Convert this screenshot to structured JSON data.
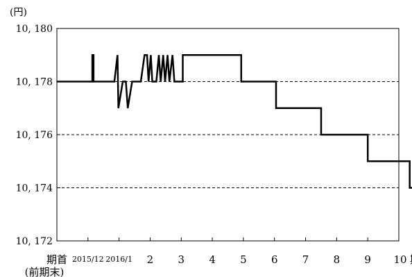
{
  "chart_data": {
    "type": "line",
    "unit_label": "(円)",
    "ylim": [
      10172,
      10180
    ],
    "y_ticks": [
      {
        "value": 10172,
        "label": "10, 172"
      },
      {
        "value": 10174,
        "label": "10, 174"
      },
      {
        "value": 10176,
        "label": "10, 176"
      },
      {
        "value": 10178,
        "label": "10, 178"
      },
      {
        "value": 10180,
        "label": "10, 180"
      }
    ],
    "dashed_gridlines": [
      10174,
      10176,
      10178
    ],
    "x_ticks": [
      {
        "label": "期首",
        "sublabel": "(前期末)",
        "small": false
      },
      {
        "label": "2015/12",
        "small": true
      },
      {
        "label": "2016/1",
        "small": true
      },
      {
        "label": "2",
        "small": false
      },
      {
        "label": "3",
        "small": false
      },
      {
        "label": "4",
        "small": false
      },
      {
        "label": "5",
        "small": false
      },
      {
        "label": "6",
        "small": false
      },
      {
        "label": "7",
        "small": false
      },
      {
        "label": "8",
        "small": false
      },
      {
        "label": "9",
        "small": false
      },
      {
        "label": "10",
        "suffix": "期末",
        "small": false
      }
    ],
    "series": [
      {
        "points": [
          [
            0,
            10178
          ],
          [
            1.14,
            10178
          ],
          [
            1.14,
            10179
          ],
          [
            1.18,
            10179
          ],
          [
            1.18,
            10178
          ],
          [
            1.85,
            10178
          ],
          [
            1.95,
            10179
          ],
          [
            1.98,
            10177
          ],
          [
            2.12,
            10178
          ],
          [
            2.22,
            10178
          ],
          [
            2.28,
            10177
          ],
          [
            2.42,
            10178
          ],
          [
            2.7,
            10178
          ],
          [
            2.82,
            10179
          ],
          [
            2.9,
            10179
          ],
          [
            2.95,
            10178
          ],
          [
            3.02,
            10179
          ],
          [
            3.07,
            10178
          ],
          [
            3.2,
            10178
          ],
          [
            3.28,
            10179
          ],
          [
            3.34,
            10178
          ],
          [
            3.42,
            10179
          ],
          [
            3.48,
            10178
          ],
          [
            3.56,
            10179
          ],
          [
            3.62,
            10178
          ],
          [
            3.72,
            10179
          ],
          [
            3.78,
            10178
          ],
          [
            4.05,
            10178
          ],
          [
            4.05,
            10179
          ],
          [
            5.93,
            10179
          ],
          [
            5.93,
            10178
          ],
          [
            7.05,
            10178
          ],
          [
            7.05,
            10177
          ],
          [
            8.5,
            10177
          ],
          [
            8.5,
            10176
          ],
          [
            10.0,
            10176
          ],
          [
            10.0,
            10175
          ],
          [
            11.35,
            10175
          ],
          [
            11.35,
            10174
          ],
          [
            11.5,
            10174
          ]
        ]
      }
    ]
  }
}
